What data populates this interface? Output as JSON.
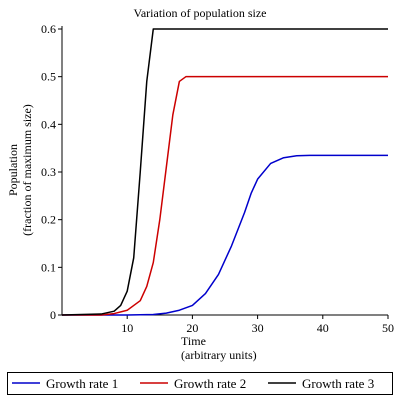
{
  "chart_data": {
    "type": "line",
    "title": "Variation of population size",
    "xlabel": [
      "Time",
      "(arbitrary units)"
    ],
    "ylabel": [
      "Population",
      "(fraction of maximum size)"
    ],
    "xlim": [
      0,
      50
    ],
    "ylim": [
      0,
      0.6
    ],
    "xticks": [
      10,
      20,
      30,
      40,
      50
    ],
    "yticks": [
      0,
      0.1,
      0.2,
      0.3,
      0.4,
      0.5,
      0.6
    ],
    "ytick_labels": [
      "0",
      "0.1",
      "0.2",
      "0.3",
      "0.4",
      "0.5",
      "0.6"
    ],
    "grid": false,
    "legend_position": "bottom",
    "series": [
      {
        "name": "Growth rate 1",
        "color": "#0000cc",
        "x": [
          0,
          10,
          14,
          16,
          18,
          20,
          22,
          24,
          26,
          28,
          29,
          30,
          32,
          34,
          36,
          38,
          40,
          45,
          50
        ],
        "y": [
          0,
          0,
          0.001,
          0.004,
          0.01,
          0.02,
          0.045,
          0.085,
          0.145,
          0.215,
          0.255,
          0.285,
          0.318,
          0.33,
          0.334,
          0.335,
          0.335,
          0.335,
          0.335
        ]
      },
      {
        "name": "Growth rate 2",
        "color": "#cc0000",
        "x": [
          0,
          6,
          8,
          10,
          12,
          13,
          14,
          15,
          16,
          17,
          18,
          19,
          20,
          25,
          30,
          40,
          50
        ],
        "y": [
          0,
          0,
          0.003,
          0.01,
          0.03,
          0.06,
          0.11,
          0.2,
          0.31,
          0.42,
          0.49,
          0.5,
          0.5,
          0.5,
          0.5,
          0.5,
          0.5
        ]
      },
      {
        "name": "Growth rate 3",
        "color": "#000000",
        "x": [
          0,
          6,
          8,
          9,
          10,
          11,
          12,
          13,
          14,
          15,
          20,
          30,
          40,
          50
        ],
        "y": [
          0,
          0.002,
          0.008,
          0.02,
          0.05,
          0.12,
          0.3,
          0.49,
          0.6,
          0.6,
          0.6,
          0.6,
          0.6,
          0.6
        ]
      }
    ]
  }
}
